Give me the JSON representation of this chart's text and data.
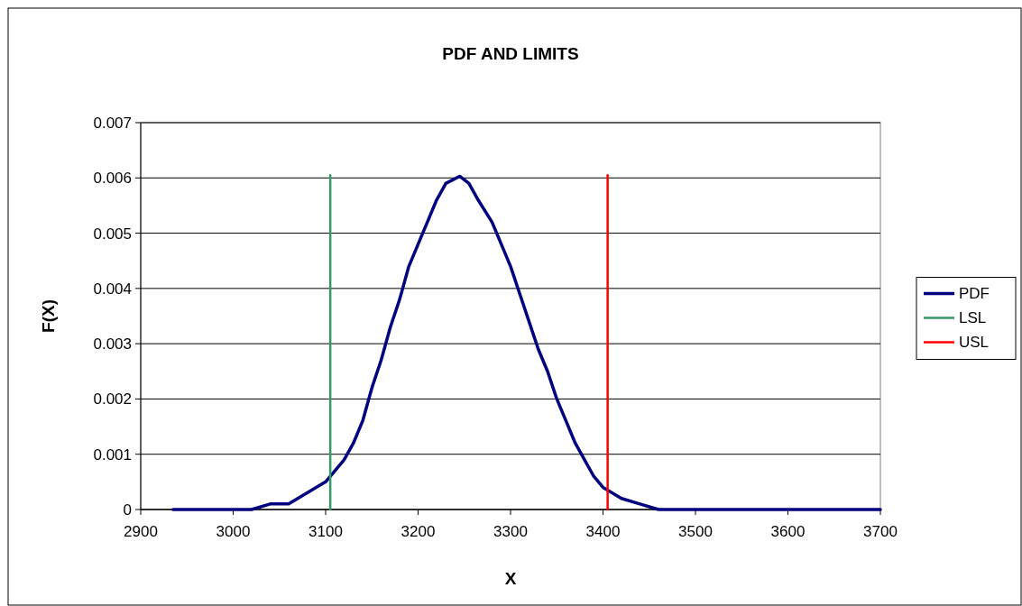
{
  "chart_data": {
    "type": "line",
    "title": "PDF AND LIMITS",
    "xlabel": "X",
    "ylabel": "F(X)",
    "xlim": [
      2900,
      3700
    ],
    "xticks": [
      2900,
      3000,
      3100,
      3200,
      3300,
      3400,
      3500,
      3600,
      3700
    ],
    "ylim": [
      0,
      0.007
    ],
    "yticks": [
      0,
      0.001,
      0.002,
      0.003,
      0.004,
      0.005,
      0.006,
      0.007
    ],
    "grid": "y",
    "legend": "right",
    "marker": "none",
    "line_style": "solid",
    "series": [
      {
        "name": "PDF",
        "color": "#000080",
        "x": [
          2935,
          3000,
          3020,
          3040,
          3060,
          3080,
          3100,
          3110,
          3120,
          3130,
          3140,
          3150,
          3160,
          3170,
          3180,
          3190,
          3200,
          3210,
          3220,
          3230,
          3245,
          3255,
          3265,
          3280,
          3290,
          3300,
          3310,
          3320,
          3330,
          3340,
          3350,
          3360,
          3370,
          3380,
          3390,
          3400,
          3420,
          3440,
          3460,
          3480,
          3700
        ],
        "values": [
          0,
          0,
          0,
          0.0001,
          0.0001,
          0.0003,
          0.0005,
          0.0007,
          0.0009,
          0.0012,
          0.0016,
          0.0022,
          0.0027,
          0.0033,
          0.0038,
          0.0044,
          0.0048,
          0.0052,
          0.0056,
          0.0059,
          0.00603,
          0.0059,
          0.0056,
          0.0052,
          0.0048,
          0.0044,
          0.0039,
          0.0034,
          0.0029,
          0.0025,
          0.002,
          0.0016,
          0.0012,
          0.0009,
          0.0006,
          0.0004,
          0.0002,
          0.0001,
          0,
          0,
          0
        ]
      },
      {
        "name": "LSL",
        "color": "#339966",
        "x": [
          3105,
          3105
        ],
        "values": [
          0,
          0.00605
        ]
      },
      {
        "name": "USL",
        "color": "#ff0000",
        "x": [
          3405,
          3405
        ],
        "values": [
          0,
          0.00605
        ]
      }
    ]
  }
}
